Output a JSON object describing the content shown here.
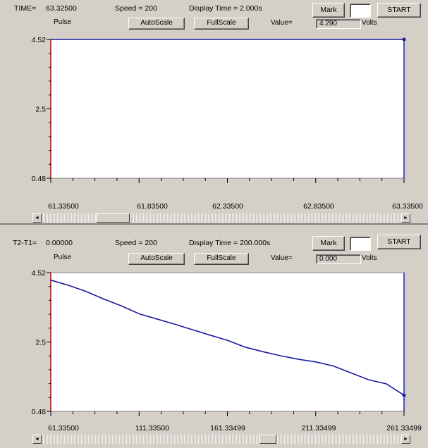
{
  "top": {
    "time_label": "TIME=",
    "time_value": "63.32500",
    "speed": "Speed = 200",
    "display_time": "Display Time = 2.000s",
    "mark_label": "Mark",
    "start_label": "START",
    "signal_label": "Pulse",
    "autoscale_label": "AutoScale",
    "fullscale_label": "FullScale",
    "value_label": "Value=",
    "value": "4.290",
    "unit": "Volts",
    "y_ticks": [
      "4.52",
      "2.5",
      "0.48"
    ],
    "x_ticks": [
      "61.33500",
      "61.83500",
      "62.33500",
      "62.83500",
      "63.33500"
    ],
    "scroll_left": "◄",
    "scroll_right": "►"
  },
  "bottom": {
    "time_label": "T2-T1=",
    "time_value": "0.00000",
    "speed": "Speed = 200",
    "display_time": "Display Time = 200.000s",
    "mark_label": "Mark",
    "start_label": "START",
    "signal_label": "Pulse",
    "autoscale_label": "AutoScale",
    "fullscale_label": "FullScale",
    "value_label": "Value=",
    "value": "0.000",
    "unit": "Volts",
    "y_ticks": [
      "4.52",
      "2.5",
      "0.48"
    ],
    "x_ticks": [
      "61.33500",
      "111.33500",
      "161.33499",
      "211.33499",
      "261.33499"
    ],
    "scroll_left": "◄",
    "scroll_right": "►"
  },
  "chart_data": [
    {
      "type": "line",
      "ylim": [
        0.48,
        4.52
      ],
      "xlim": [
        61.335,
        63.335
      ],
      "series": [
        {
          "x": [
            61.335,
            63.335
          ],
          "values": [
            4.52,
            4.52
          ]
        }
      ],
      "line_color": "#1a1aa0"
    },
    {
      "type": "line",
      "ylim": [
        0.48,
        4.52
      ],
      "xlim": [
        61.335,
        261.335
      ],
      "series": [
        {
          "x": [
            61.335,
            71.335,
            81.335,
            91.335,
            101.335,
            111.335,
            121.335,
            131.335,
            141.335,
            151.335,
            161.335,
            171.335,
            181.335,
            191.335,
            201.335,
            211.335,
            221.335,
            231.335,
            241.335,
            251.335,
            261.335
          ],
          "values": [
            4.3,
            4.15,
            3.97,
            3.75,
            3.55,
            3.32,
            3.17,
            3.02,
            2.86,
            2.7,
            2.55,
            2.35,
            2.22,
            2.1,
            2.0,
            1.92,
            1.8,
            1.6,
            1.4,
            1.28,
            0.95
          ]
        }
      ],
      "line_color": "#1a1aa0"
    }
  ],
  "colors": {
    "panel_bg": "#d4d0c8",
    "plot_bg": "#ffffff",
    "trace": "#1a1aa0",
    "left_axis": "#c00000",
    "right_axis": "#2020c0"
  }
}
